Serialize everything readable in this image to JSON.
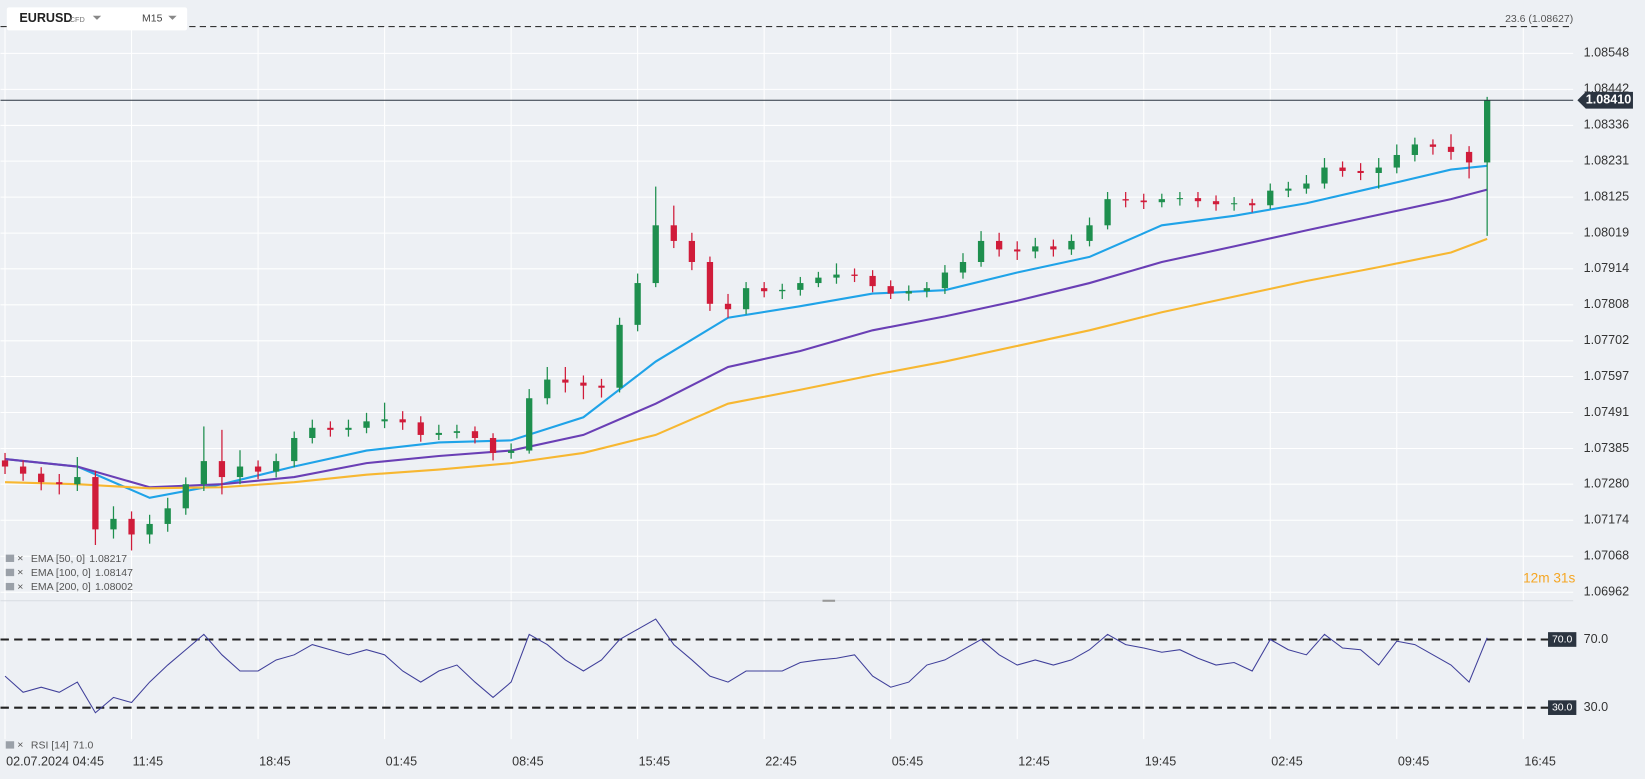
{
  "chart_data": [
    {
      "type": "candlestick",
      "title": "EURUSD",
      "instrument_type": "CFD",
      "timeframe": "M15",
      "up_color": "#1e8f4e",
      "down_color": "#d01c3a",
      "grid": true,
      "xlim": [
        -0.25,
        86.76
      ],
      "xticks": [
        {
          "value": 0,
          "label": "02.07.2024  04:45"
        },
        {
          "value": 7,
          "label": "11:45"
        },
        {
          "value": 14,
          "label": "18:45"
        },
        {
          "value": 21,
          "label": "01:45"
        },
        {
          "value": 28,
          "label": "08:45"
        },
        {
          "value": 35,
          "label": "15:45"
        },
        {
          "value": 42,
          "label": "22:45"
        },
        {
          "value": 49,
          "label": "05:45"
        },
        {
          "value": 56,
          "label": "12:45"
        },
        {
          "value": 63,
          "label": "19:45"
        },
        {
          "value": 70,
          "label": "02:45"
        },
        {
          "value": 77,
          "label": "09:45"
        },
        {
          "value": 84,
          "label": "16:45"
        }
      ],
      "ylim": [
        1.0694,
        1.08628
      ],
      "yticks": [
        1.08548,
        1.08442,
        1.08336,
        1.08231,
        1.08125,
        1.08019,
        1.07914,
        1.07808,
        1.07702,
        1.07597,
        1.07491,
        1.07385,
        {
          "value": 1.0728,
          "label": "1.07280"
        },
        1.07174,
        1.07068,
        1.06962
      ],
      "price": {
        "value": 1.0841,
        "label": "1.08410"
      },
      "levels": [
        {
          "value": 1.08627,
          "label": "23.6 (1.08627)"
        }
      ],
      "countdown": "12m 31s",
      "candles": {
        "x": [
          0,
          1,
          2,
          3,
          4,
          5,
          6,
          7,
          8,
          9,
          10,
          11,
          12,
          13,
          14,
          15,
          16,
          17,
          18,
          19,
          20,
          21,
          22,
          23,
          24,
          25,
          26,
          27,
          28,
          29,
          30,
          31,
          32,
          33,
          34,
          35,
          36,
          37,
          38,
          39,
          40,
          41,
          42,
          43,
          44,
          45,
          46,
          47,
          48,
          49,
          50,
          51,
          52,
          53,
          54,
          55,
          56,
          57,
          58,
          59,
          60,
          61,
          62,
          63,
          64,
          65,
          66,
          67,
          68,
          69,
          70,
          71,
          72,
          73,
          74,
          75,
          76,
          77,
          78,
          79,
          80,
          81,
          82
        ],
        "open": [
          1.0735,
          1.07332,
          1.07311,
          1.07286,
          1.0728,
          1.07301,
          1.07147,
          1.07178,
          1.07132,
          1.07163,
          1.07209,
          1.0728,
          1.07348,
          1.07301,
          1.07332,
          1.07317,
          1.07348,
          1.07416,
          1.07446,
          1.0744,
          1.07446,
          1.07465,
          1.07471,
          1.07462,
          1.07425,
          1.07431,
          1.07436,
          1.07416,
          1.07372,
          1.07379,
          1.07533,
          1.07588,
          1.07579,
          1.0757,
          1.07564,
          1.07749,
          1.07872,
          1.08042,
          1.07996,
          1.07934,
          1.07811,
          1.07795,
          1.07857,
          1.07848,
          1.07852,
          1.07872,
          1.07888,
          1.07897,
          1.07893,
          1.07863,
          1.07841,
          1.07848,
          1.07857,
          1.07903,
          1.07934,
          1.07996,
          1.07971,
          1.07965,
          1.0798,
          1.07971,
          1.07996,
          1.08042,
          1.08119,
          1.08115,
          1.0811,
          1.08119,
          1.08122,
          1.08113,
          1.08104,
          1.08107,
          1.08101,
          1.08144,
          1.0815,
          1.08165,
          1.08212,
          1.08202,
          1.08196,
          1.08212,
          1.08249,
          1.0828,
          1.08273,
          1.08258,
          1.08227
        ],
        "high": [
          1.07372,
          1.0735,
          1.0733,
          1.0731,
          1.0736,
          1.0732,
          1.07215,
          1.072,
          1.0719,
          1.0724,
          1.073,
          1.0745,
          1.0744,
          1.0738,
          1.0735,
          1.0737,
          1.07435,
          1.0747,
          1.07465,
          1.0747,
          1.0749,
          1.0752,
          1.07495,
          1.0748,
          1.07455,
          1.07455,
          1.0745,
          1.0743,
          1.074,
          1.0756,
          1.07625,
          1.07625,
          1.076,
          1.0759,
          1.0777,
          1.079,
          1.08156,
          1.081,
          1.0802,
          1.0795,
          1.0784,
          1.07875,
          1.07875,
          1.0787,
          1.0789,
          1.07905,
          1.0793,
          1.07915,
          1.0791,
          1.0788,
          1.07865,
          1.07875,
          1.07925,
          1.0796,
          1.08025,
          1.0802,
          1.07995,
          1.08005,
          1.08,
          1.08015,
          1.08065,
          1.0814,
          1.0814,
          1.08135,
          1.08135,
          1.0814,
          1.0814,
          1.0813,
          1.08125,
          1.0812,
          1.08165,
          1.0817,
          1.0819,
          1.0824,
          1.0823,
          1.08225,
          1.0824,
          1.0828,
          1.083,
          1.08295,
          1.0831,
          1.08275,
          1.0842
        ],
        "low": [
          1.0731,
          1.0729,
          1.07262,
          1.0725,
          1.0726,
          1.07101,
          1.0712,
          1.07085,
          1.07105,
          1.0714,
          1.0719,
          1.0726,
          1.0725,
          1.0728,
          1.07295,
          1.073,
          1.0733,
          1.074,
          1.0742,
          1.0742,
          1.0743,
          1.07445,
          1.0744,
          1.07405,
          1.0741,
          1.07415,
          1.074,
          1.0735,
          1.07355,
          1.0737,
          1.07515,
          1.0755,
          1.0753,
          1.07535,
          1.0755,
          1.0773,
          1.0786,
          1.07975,
          1.0791,
          1.0779,
          1.0777,
          1.0778,
          1.0783,
          1.07825,
          1.07835,
          1.0786,
          1.0787,
          1.07875,
          1.07845,
          1.07825,
          1.0782,
          1.0783,
          1.0784,
          1.07885,
          1.0792,
          1.0795,
          1.0794,
          1.07945,
          1.0795,
          1.07955,
          1.0798,
          1.0803,
          1.08095,
          1.0809,
          1.08095,
          1.081,
          1.08095,
          1.08085,
          1.08085,
          1.0808,
          1.0809,
          1.08125,
          1.08135,
          1.0815,
          1.08185,
          1.08175,
          1.0815,
          1.08195,
          1.0823,
          1.0825,
          1.08235,
          1.0818,
          1.08011
        ],
        "close": [
          1.07332,
          1.07311,
          1.07286,
          1.0728,
          1.07301,
          1.07147,
          1.07178,
          1.07132,
          1.07163,
          1.07209,
          1.0728,
          1.07348,
          1.07301,
          1.07332,
          1.07317,
          1.07348,
          1.07416,
          1.07446,
          1.0744,
          1.07446,
          1.07465,
          1.07471,
          1.07462,
          1.07425,
          1.07431,
          1.07436,
          1.07416,
          1.07372,
          1.07379,
          1.07533,
          1.07588,
          1.07579,
          1.0757,
          1.07564,
          1.07749,
          1.07872,
          1.08042,
          1.07996,
          1.07934,
          1.07811,
          1.07795,
          1.07857,
          1.07848,
          1.07852,
          1.07872,
          1.07888,
          1.07897,
          1.07893,
          1.07863,
          1.07841,
          1.07848,
          1.07857,
          1.07903,
          1.07934,
          1.07996,
          1.07971,
          1.07965,
          1.0798,
          1.07971,
          1.07996,
          1.08042,
          1.08119,
          1.08115,
          1.0811,
          1.08119,
          1.08122,
          1.08113,
          1.08104,
          1.08107,
          1.08101,
          1.08144,
          1.0815,
          1.08165,
          1.08212,
          1.08202,
          1.08196,
          1.08212,
          1.08249,
          1.0828,
          1.08273,
          1.08258,
          1.08227,
          1.0841
        ]
      },
      "series": [
        {
          "name": "EMA [50, 0]",
          "current": 1.08217,
          "color": "#1fa3e8",
          "x": [
            0,
            4,
            8,
            12,
            16,
            20,
            24,
            28,
            32,
            36,
            40,
            44,
            48,
            52,
            56,
            60,
            64,
            68,
            72,
            76,
            80,
            82
          ],
          "values": [
            1.07354,
            1.07332,
            1.0724,
            1.0728,
            1.07332,
            1.07379,
            1.07403,
            1.07409,
            1.07477,
            1.07641,
            1.0777,
            1.07804,
            1.07841,
            1.07851,
            1.07903,
            1.07949,
            1.08042,
            1.0807,
            1.08107,
            1.08156,
            1.08206,
            1.08217
          ]
        },
        {
          "name": "EMA [100, 0]",
          "current": 1.08147,
          "color": "#6a3fb5",
          "x": [
            0,
            4,
            8,
            12,
            16,
            20,
            24,
            28,
            32,
            36,
            40,
            44,
            48,
            52,
            56,
            60,
            64,
            68,
            72,
            76,
            80,
            82
          ],
          "values": [
            1.07354,
            1.07332,
            1.07271,
            1.0728,
            1.07301,
            1.07342,
            1.07363,
            1.07379,
            1.07425,
            1.07517,
            1.07625,
            1.07672,
            1.07733,
            1.07774,
            1.0782,
            1.07872,
            1.07934,
            1.0798,
            1.08027,
            1.08073,
            1.08119,
            1.08147
          ]
        },
        {
          "name": "EMA [200, 0]",
          "current": 1.08002,
          "color": "#f7b731",
          "x": [
            0,
            4,
            8,
            12,
            16,
            20,
            24,
            28,
            32,
            36,
            40,
            44,
            48,
            52,
            56,
            60,
            64,
            68,
            72,
            76,
            80,
            82
          ],
          "values": [
            1.07286,
            1.0728,
            1.07268,
            1.07271,
            1.07286,
            1.07308,
            1.07323,
            1.07342,
            1.07372,
            1.07425,
            1.07517,
            1.07558,
            1.07601,
            1.07641,
            1.07687,
            1.07733,
            1.07786,
            1.07832,
            1.07878,
            1.07919,
            1.07962,
            1.08002
          ]
        }
      ]
    },
    {
      "type": "line",
      "title": "RSI [14]",
      "current": {
        "value": 71,
        "label": "71.0"
      },
      "color": "#3f3f9a",
      "xlim": [
        -0.25,
        86.76
      ],
      "ylim": [
        11.5,
        91.5
      ],
      "yticks": [
        {
          "value": 70,
          "label": "70.0"
        },
        {
          "value": 30,
          "label": "30.0"
        }
      ],
      "x": [
        0,
        1,
        2,
        3,
        4,
        5,
        6,
        7,
        8,
        9,
        10,
        11,
        12,
        13,
        14,
        15,
        16,
        17,
        18,
        19,
        20,
        21,
        22,
        23,
        24,
        25,
        26,
        27,
        28,
        29,
        30,
        31,
        32,
        33,
        34,
        35,
        36,
        37,
        38,
        39,
        40,
        41,
        42,
        43,
        44,
        45,
        46,
        47,
        48,
        49,
        50,
        51,
        52,
        53,
        54,
        55,
        56,
        57,
        58,
        59,
        60,
        61,
        62,
        63,
        64,
        65,
        66,
        67,
        68,
        69,
        70,
        71,
        72,
        73,
        74,
        75,
        76,
        77,
        78,
        79,
        80,
        81,
        82
      ],
      "values": [
        48.5,
        39,
        42,
        39,
        45,
        27,
        36,
        33,
        45,
        55,
        64,
        73,
        61,
        51.5,
        51.5,
        58,
        61,
        67,
        64,
        61,
        64,
        61,
        51.5,
        45,
        51.5,
        55,
        45,
        36,
        45,
        73,
        67,
        58,
        51.5,
        58,
        70,
        76,
        82,
        67,
        58,
        48.5,
        45,
        51.5,
        51.5,
        51.5,
        56.5,
        58,
        59,
        61,
        48.5,
        42,
        45,
        55,
        58,
        64,
        70,
        61,
        55,
        58,
        55,
        58,
        64,
        73,
        67,
        65,
        62.5,
        64,
        59,
        55,
        56.5,
        51.5,
        70,
        64,
        61,
        73,
        65,
        64,
        55,
        69,
        67,
        61,
        55,
        45,
        71
      ]
    }
  ]
}
